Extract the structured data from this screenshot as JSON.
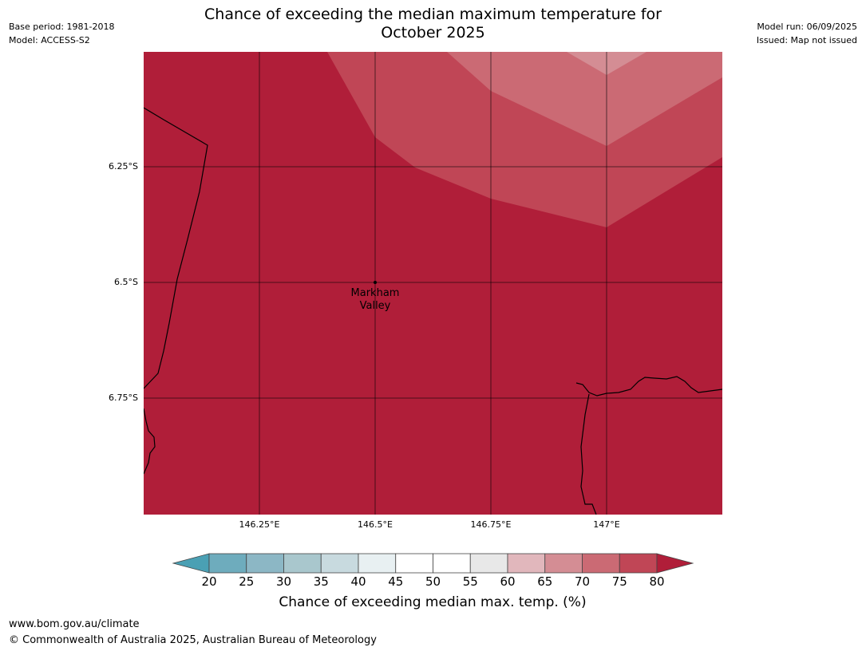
{
  "header": {
    "title_line1": "Chance of exceeding the median maximum temperature for",
    "title_line2": "October 2025",
    "base_period": "Base period: 1981-2018",
    "model": "Model: ACCESS-S2",
    "model_run": "Model run: 06/09/2025",
    "issued": "Issued: Map not issued"
  },
  "map": {
    "lat_ticks": [
      "6.25°S",
      "6.5°S",
      "6.75°S"
    ],
    "lon_ticks": [
      "146.25°E",
      "146.5°E",
      "146.75°E",
      "147°E"
    ],
    "place": {
      "name_line1": "Markham",
      "name_line2": "Valley"
    },
    "fill_colors": {
      "above_80": "#b01e39",
      "75_80": "#c04656",
      "70_75": "#cb6a74",
      "65_70": "#d48d94"
    }
  },
  "colorbar": {
    "tick_labels": [
      "20",
      "25",
      "30",
      "35",
      "40",
      "45",
      "50",
      "55",
      "60",
      "65",
      "70",
      "75",
      "80"
    ],
    "colors": [
      "#4aa0b4",
      "#6eacbd",
      "#8cb7c5",
      "#a9c7cd",
      "#c8dadf",
      "#e8f0f2",
      "#ffffff",
      "#ffffff",
      "#e8e8e8",
      "#e1b7bc",
      "#d48d94",
      "#cb6a74",
      "#c04656",
      "#b01e39"
    ],
    "label": "Chance of exceeding median max. temp. (%)"
  },
  "footer": {
    "url": "www.bom.gov.au/climate",
    "copyright": "© Commonwealth of Australia 2025, Australian Bureau of Meteorology"
  }
}
